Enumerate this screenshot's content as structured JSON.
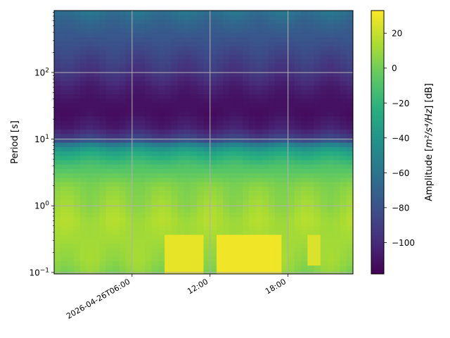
{
  "chart_data": {
    "type": "heatmap",
    "title": "",
    "xlabel": "",
    "ylabel": "Period [s]",
    "x_axis": {
      "start_hour": 0.0,
      "end_hour": 23.0,
      "ticks": [
        {
          "hour": 6,
          "label": "2026-04-26T06:00"
        },
        {
          "hour": 12,
          "label": "12:00"
        },
        {
          "hour": 18,
          "label": "18:00"
        }
      ]
    },
    "y_axis": {
      "scale": "log",
      "range": [
        0.095,
        850
      ],
      "ticks": [
        {
          "value": 0.1,
          "base": "10",
          "exp": "−1"
        },
        {
          "value": 1,
          "base": "10",
          "exp": "0"
        },
        {
          "value": 10,
          "base": "10",
          "exp": "1"
        },
        {
          "value": 100,
          "base": "10",
          "exp": "2"
        }
      ]
    },
    "colorbar": {
      "label_prefix": "Amplitude [",
      "label_unit": "m²/s⁴/Hz",
      "label_suffix": "] [dB]",
      "range": [
        -118,
        33
      ],
      "ticks": [
        20,
        0,
        -20,
        -40,
        -60,
        -80,
        -100
      ],
      "tick_labels": [
        "20",
        "0",
        "−20",
        "−40",
        "−60",
        "−80",
        "−100"
      ],
      "colormap": "viridis"
    },
    "grid": true,
    "period_profile_db": [
      {
        "period": 0.095,
        "db": 5
      },
      {
        "period": 0.15,
        "db": 10
      },
      {
        "period": 0.3,
        "db": 12
      },
      {
        "period": 0.6,
        "db": 14
      },
      {
        "period": 1.0,
        "db": 10
      },
      {
        "period": 2.0,
        "db": 5
      },
      {
        "period": 4.0,
        "db": -10
      },
      {
        "period": 6.0,
        "db": -25
      },
      {
        "period": 8.0,
        "db": -45
      },
      {
        "period": 10.0,
        "db": -85
      },
      {
        "period": 15.0,
        "db": -105
      },
      {
        "period": 25.0,
        "db": -112
      },
      {
        "period": 40.0,
        "db": -110
      },
      {
        "period": 60.0,
        "db": -105
      },
      {
        "period": 100.0,
        "db": -95
      },
      {
        "period": 200.0,
        "db": -85
      },
      {
        "period": 400.0,
        "db": -75
      },
      {
        "period": 600.0,
        "db": -68
      },
      {
        "period": 850.0,
        "db": -60
      }
    ],
    "high_amplitude_bursts": [
      {
        "start_hour": 8.5,
        "end_hour": 11.5,
        "period_range": [
          0.1,
          0.4
        ],
        "db": 28
      },
      {
        "start_hour": 12.5,
        "end_hour": 17.5,
        "period_range": [
          0.1,
          0.35
        ],
        "db": 30
      },
      {
        "start_hour": 19.5,
        "end_hour": 20.5,
        "period_range": [
          0.12,
          0.4
        ],
        "db": 25
      }
    ]
  }
}
